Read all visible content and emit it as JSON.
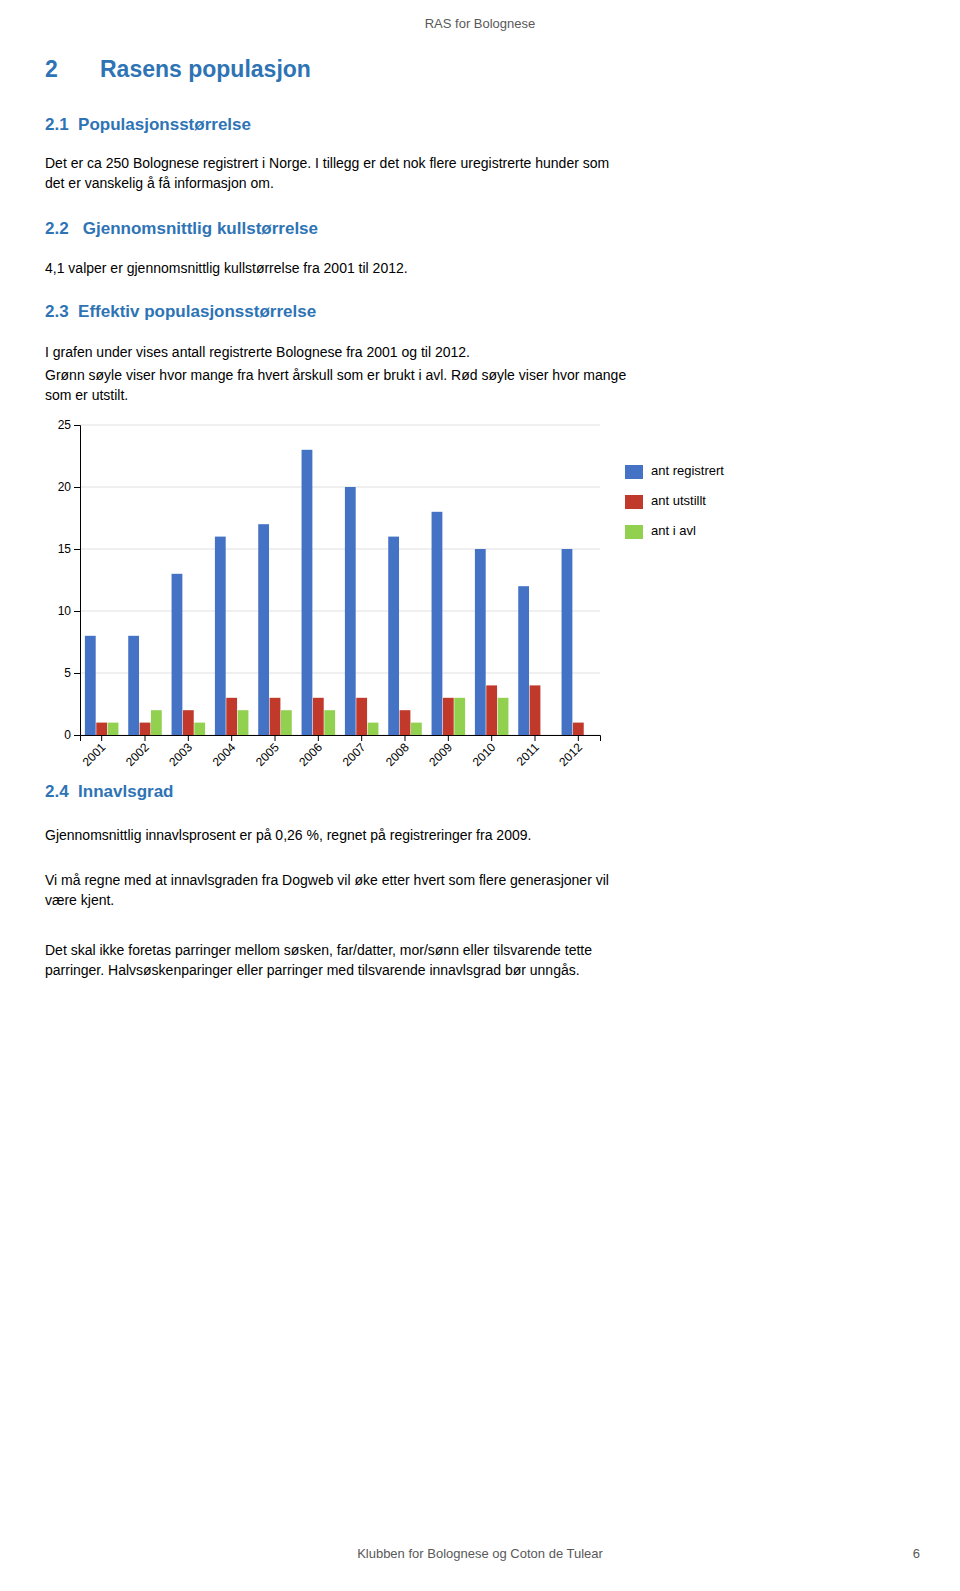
{
  "page": {
    "page_title": "RAS for Bolognese",
    "heading1_num": "2",
    "heading1_text": "Rasens populasjon",
    "heading2": "2.1  Populasjonsstørrelse",
    "para1": [
      "Det er ca 250 Bolognese registrert i Norge. I tillegg er det nok flere uregistrerte hunder som",
      "det er vanskelig å få informasjon om."
    ],
    "heading3": "2.2   Gjennomsnittlig kullstørrelse",
    "para2": "4,1 valper er gjennomsnittlig kullstørrelse fra 2001 til 2012.",
    "heading4": "2.3  Effektiv populasjonsstørrelse",
    "para3": "I grafen under vises antall registrerte Bolognese fra 2001 og til 2012.",
    "para4": [
      "Grønn søyle viser hvor mange fra hvert årskull som er brukt i avl. Rød søyle viser hvor mange",
      "som er utstilt."
    ],
    "heading4b": "2.4  Innavlsgrad",
    "para5": "Gjennomsnittlig innavlsprosent er på 0,26 %, regnet på registreringer fra 2009.",
    "para6": [
      "Vi må regne med at innavlsgraden fra Dogweb vil øke etter hvert som flere generasjoner vil",
      "være kjent."
    ],
    "para7": [
      "Det skal ikke foretas parringer mellom søsken, far/datter, mor/sønn eller tilsvarende tette",
      "parringer. Halvsøskenparinger eller parringer med tilsvarende innavlsgrad bør unngås."
    ],
    "footer": "Klubben for Bolognese og Coton de Tulear",
    "page_num": "6"
  },
  "chart_data": {
    "type": "bar",
    "categories": [
      "2001",
      "2002",
      "2003",
      "2004",
      "2005",
      "2006",
      "2007",
      "2008",
      "2009",
      "2010",
      "2011",
      "2012"
    ],
    "series": [
      {
        "name": "ant registrert",
        "color": "#4472C4",
        "values": [
          8,
          8,
          13,
          16,
          17,
          23,
          20,
          16,
          18,
          15,
          12,
          15
        ]
      },
      {
        "name": "ant utstillt",
        "color": "#C0392B",
        "values": [
          1,
          1,
          2,
          3,
          3,
          3,
          3,
          2,
          3,
          4,
          4,
          1
        ]
      },
      {
        "name": "ant i avl",
        "color": "#92D050",
        "values": [
          1,
          2,
          1,
          2,
          2,
          2,
          1,
          1,
          3,
          3,
          0,
          0
        ]
      }
    ],
    "ylim": [
      0,
      25
    ],
    "yticks": [
      0,
      5,
      10,
      15,
      20,
      25
    ],
    "grid": true,
    "legend": "right"
  }
}
